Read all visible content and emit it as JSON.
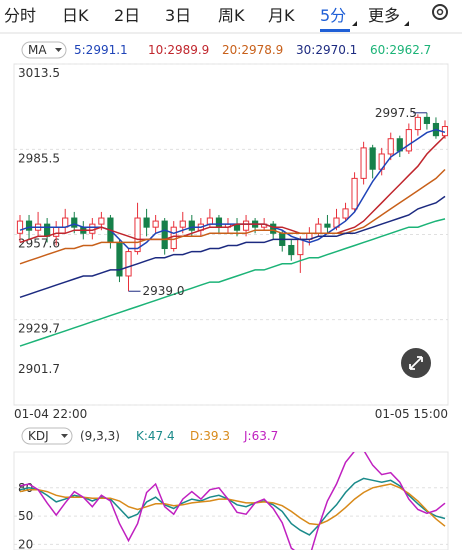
{
  "tabs": [
    "分时",
    "日K",
    "2日",
    "3日",
    "周K",
    "月K",
    "5分",
    "更多"
  ],
  "active_tab": 6,
  "chart_data": [
    {
      "type": "candlestick",
      "legend_title": "MA",
      "series_labels": [
        "5:2991.1",
        "10:2989.9",
        "20:2978.9",
        "30:2970.1",
        "60:2962.7"
      ],
      "x_labels": [
        "01-04 22:00",
        "01-05 15:00"
      ],
      "annotations": [
        "2997.5",
        "2939.0"
      ],
      "ylim": [
        2901.7,
        3013.5
      ],
      "yticks": [
        3013.5,
        2985.5,
        2957.6,
        2929.7,
        2901.7
      ],
      "up_color": "#e8303a",
      "down_color": "#17804a",
      "open": [
        2958,
        2962,
        2959,
        2961,
        2957,
        2960,
        2963,
        2960,
        2958,
        2961,
        2963,
        2955,
        2944,
        2952,
        2963,
        2960,
        2962,
        2953,
        2960,
        2962,
        2959,
        2961,
        2963,
        2960,
        2961,
        2959,
        2962,
        2960,
        2961,
        2958,
        2954,
        2951,
        2956,
        2958,
        2961,
        2960,
        2963,
        2966,
        2976,
        2986,
        2979,
        2984,
        2989,
        2985,
        2992,
        2996,
        2994,
        2990
      ],
      "close": [
        2962,
        2959,
        2961,
        2957,
        2960,
        2963,
        2960,
        2958,
        2961,
        2963,
        2955,
        2944,
        2952,
        2963,
        2960,
        2962,
        2953,
        2960,
        2962,
        2959,
        2961,
        2963,
        2960,
        2961,
        2959,
        2962,
        2960,
        2961,
        2958,
        2954,
        2951,
        2956,
        2958,
        2961,
        2960,
        2963,
        2966,
        2976,
        2986,
        2979,
        2984,
        2989,
        2985,
        2992,
        2996,
        2994,
        2990,
        2993
      ],
      "high": [
        2964,
        2964,
        2965,
        2963,
        2962,
        2966,
        2965,
        2962,
        2963,
        2965,
        2964,
        2956,
        2953,
        2968,
        2966,
        2964,
        2963,
        2962,
        2965,
        2964,
        2963,
        2966,
        2964,
        2963,
        2963,
        2964,
        2963,
        2963,
        2962,
        2959,
        2956,
        2957,
        2960,
        2963,
        2964,
        2966,
        2968,
        2978,
        2988,
        2987,
        2986,
        2991,
        2990,
        2994,
        2997,
        2997.5,
        2996,
        2995
      ],
      "low": [
        2955,
        2956,
        2957,
        2955,
        2954,
        2958,
        2958,
        2956,
        2956,
        2959,
        2953,
        2942,
        2939.0,
        2951,
        2957,
        2958,
        2951,
        2952,
        2958,
        2957,
        2957,
        2960,
        2958,
        2958,
        2957,
        2957,
        2958,
        2959,
        2956,
        2952,
        2949,
        2945,
        2954,
        2957,
        2958,
        2959,
        2962,
        2965,
        2974,
        2976,
        2977,
        2982,
        2983,
        2984,
        2990,
        2992,
        2989,
        2989
      ],
      "series": [
        {
          "name": "5",
          "color": "#1f44b8",
          "values": [
            2959,
            2960,
            2960,
            2960,
            2960,
            2960,
            2961,
            2960,
            2960,
            2960,
            2959,
            2956,
            2953,
            2953,
            2955,
            2958,
            2959,
            2958,
            2959,
            2960,
            2960,
            2961,
            2961,
            2961,
            2961,
            2961,
            2961,
            2961,
            2960,
            2959,
            2957,
            2956,
            2955,
            2956,
            2958,
            2960,
            2962,
            2965,
            2970,
            2975,
            2979,
            2983,
            2985,
            2987,
            2989,
            2991,
            2992,
            2991.1
          ]
        },
        {
          "name": "10",
          "color": "#c0262d",
          "values": [
            2955,
            2956,
            2957,
            2957,
            2958,
            2958,
            2959,
            2959,
            2959,
            2960,
            2959,
            2958,
            2957,
            2956,
            2956,
            2956,
            2956,
            2957,
            2957,
            2958,
            2959,
            2960,
            2960,
            2960,
            2961,
            2961,
            2961,
            2961,
            2960,
            2960,
            2959,
            2958,
            2958,
            2958,
            2958,
            2958,
            2959,
            2960,
            2962,
            2965,
            2968,
            2971,
            2974,
            2977,
            2980,
            2984,
            2987,
            2989.9
          ]
        },
        {
          "name": "20",
          "color": "#c8601a",
          "values": [
            2948,
            2949,
            2950,
            2951,
            2952,
            2953,
            2953,
            2954,
            2954,
            2955,
            2955,
            2955,
            2955,
            2955,
            2956,
            2956,
            2956,
            2956,
            2957,
            2957,
            2957,
            2958,
            2958,
            2958,
            2958,
            2958,
            2959,
            2959,
            2959,
            2958,
            2958,
            2958,
            2958,
            2958,
            2958,
            2958,
            2958,
            2959,
            2960,
            2962,
            2964,
            2966,
            2968,
            2970,
            2972,
            2974,
            2976,
            2978.9
          ]
        },
        {
          "name": "30",
          "color": "#1c2a80",
          "values": [
            2937,
            2938,
            2939,
            2940,
            2941,
            2942,
            2943,
            2944,
            2944,
            2945,
            2946,
            2946,
            2947,
            2948,
            2949,
            2950,
            2950,
            2951,
            2951,
            2952,
            2952,
            2953,
            2953,
            2954,
            2954,
            2955,
            2955,
            2955,
            2956,
            2956,
            2956,
            2956,
            2956,
            2957,
            2957,
            2957,
            2958,
            2958,
            2959,
            2960,
            2961,
            2962,
            2963,
            2964,
            2966,
            2967,
            2968,
            2970.1
          ]
        },
        {
          "name": "60",
          "color": "#1bb377",
          "values": [
            2921,
            2922,
            2923,
            2924,
            2925,
            2926,
            2927,
            2928,
            2929,
            2930,
            2931,
            2932,
            2933,
            2934,
            2935,
            2936,
            2937,
            2938,
            2939,
            2940,
            2941,
            2942,
            2942,
            2943,
            2944,
            2945,
            2946,
            2946,
            2947,
            2948,
            2948,
            2949,
            2950,
            2950,
            2951,
            2952,
            2953,
            2954,
            2955,
            2956,
            2957,
            2958,
            2959,
            2960,
            2960,
            2961,
            2962,
            2962.7
          ]
        }
      ]
    },
    {
      "type": "line",
      "legend_title": "KDJ",
      "params": "(9,3,3)",
      "series_labels": [
        "K:47.4",
        "D:39.3",
        "J:63.7"
      ],
      "ylim": [
        14,
        118
      ],
      "yticks": [
        80,
        50,
        20
      ],
      "series": [
        {
          "name": "K",
          "color": "#1a8a8a",
          "values": [
            78,
            80,
            78,
            72,
            65,
            68,
            72,
            70,
            66,
            70,
            68,
            58,
            48,
            52,
            65,
            70,
            62,
            58,
            64,
            68,
            66,
            70,
            72,
            68,
            62,
            60,
            64,
            66,
            62,
            55,
            42,
            35,
            30,
            40,
            52,
            62,
            75,
            85,
            90,
            88,
            86,
            88,
            82,
            72,
            63,
            55,
            50,
            47.4
          ]
        },
        {
          "name": "D",
          "color": "#d88a1a",
          "values": [
            76,
            78,
            78,
            76,
            72,
            70,
            70,
            70,
            69,
            69,
            69,
            66,
            60,
            57,
            60,
            63,
            63,
            61,
            62,
            64,
            65,
            66,
            68,
            68,
            66,
            64,
            64,
            65,
            64,
            61,
            55,
            48,
            42,
            41,
            45,
            51,
            59,
            68,
            75,
            80,
            82,
            84,
            80,
            74,
            66,
            56,
            47,
            39.3
          ]
        },
        {
          "name": "J",
          "color": "#c020c0",
          "values": [
            82,
            84,
            78,
            64,
            51,
            64,
            76,
            70,
            60,
            72,
            66,
            42,
            24,
            42,
            75,
            84,
            60,
            52,
            68,
            76,
            68,
            78,
            80,
            68,
            54,
            52,
            64,
            68,
            58,
            43,
            16,
            9,
            6,
            38,
            66,
            84,
            107,
            119,
            120,
            104,
            94,
            96,
            86,
            68,
            57,
            53,
            56,
            63.7
          ]
        }
      ]
    }
  ]
}
